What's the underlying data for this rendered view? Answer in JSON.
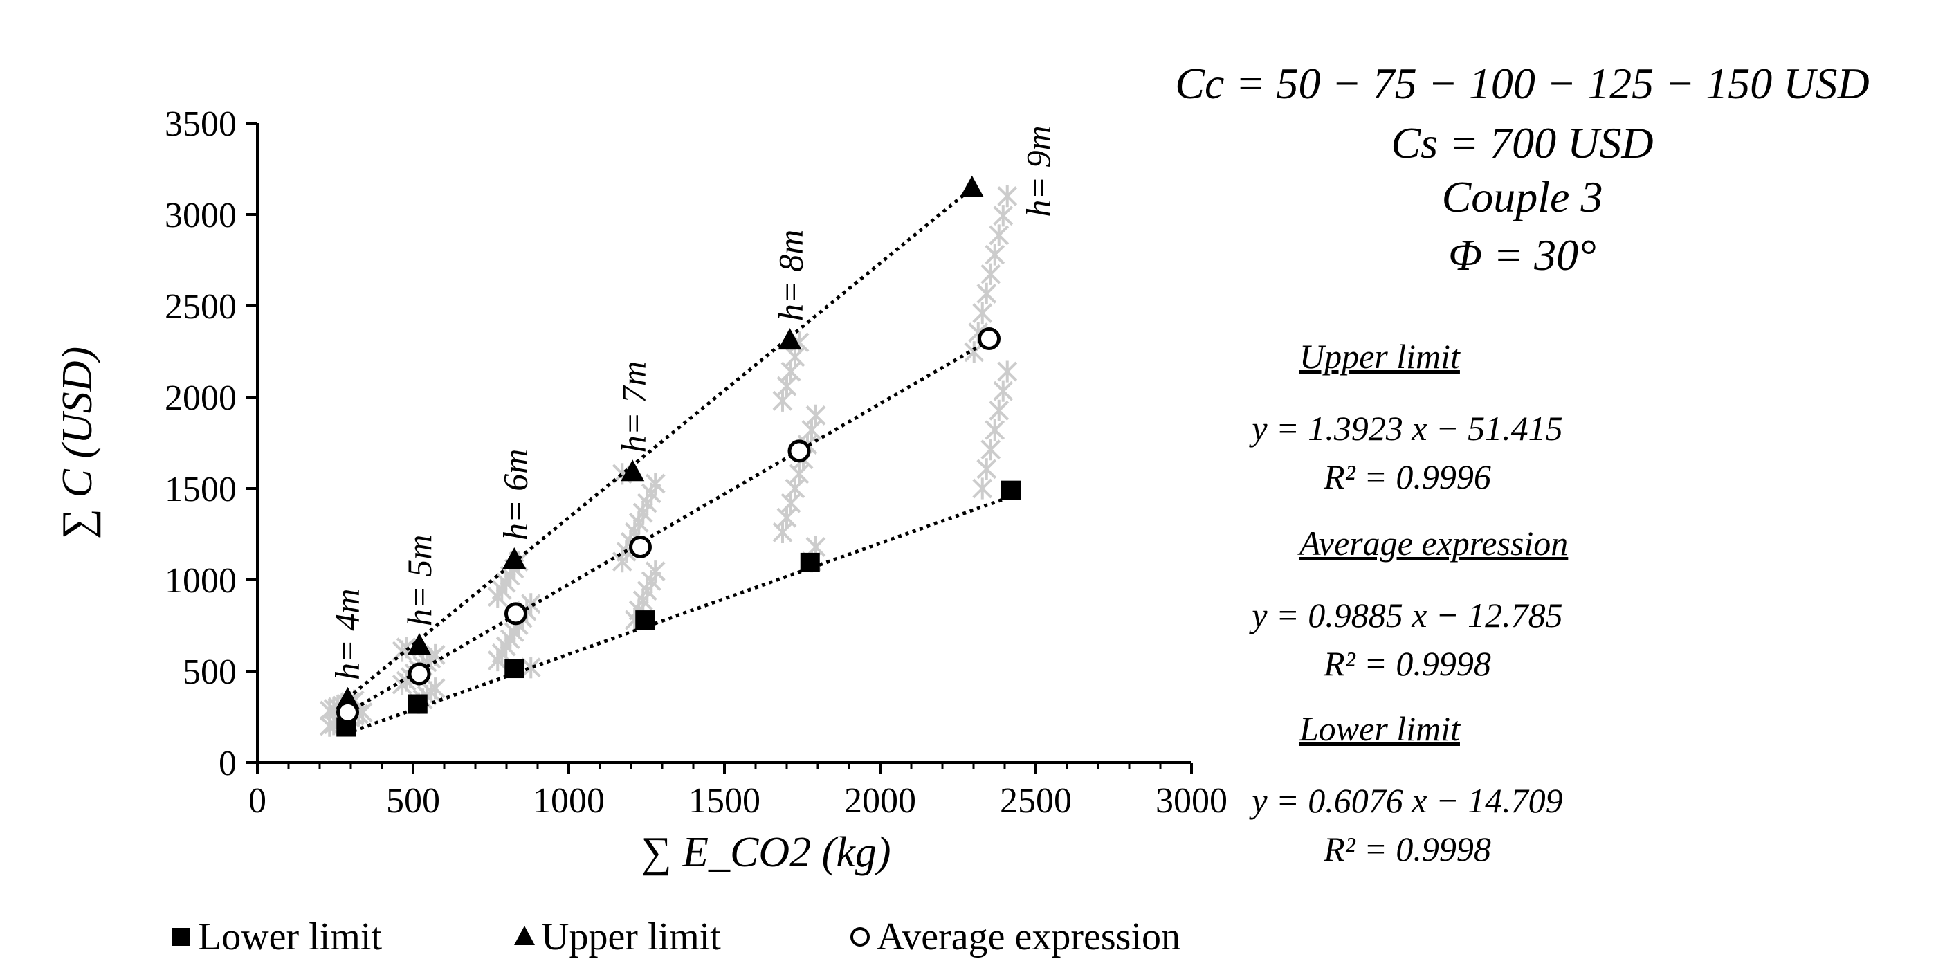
{
  "chart_data": {
    "type": "scatter",
    "title": "",
    "xlabel": "∑ E_CO2 (kg)",
    "ylabel": "∑ C (USD)",
    "xlim": [
      0,
      3000
    ],
    "ylim": [
      0,
      3500
    ],
    "xticks": [
      "0",
      "500",
      "1000",
      "1500",
      "2000",
      "2500",
      "3000"
    ],
    "yticks": [
      "0",
      "500",
      "1000",
      "1500",
      "2000",
      "2500",
      "3000",
      "3500"
    ],
    "grid": false,
    "legend_position": "bottom",
    "series": [
      {
        "name": "Lower limit",
        "marker": "square",
        "points": [
          [
            285,
            195
          ],
          [
            515,
            320
          ],
          [
            825,
            515
          ],
          [
            1245,
            780
          ],
          [
            1775,
            1095
          ],
          [
            2420,
            1490
          ]
        ]
      },
      {
        "name": "Upper limit",
        "marker": "triangle",
        "points": [
          [
            290,
            345
          ],
          [
            520,
            640
          ],
          [
            825,
            1110
          ],
          [
            1205,
            1590
          ],
          [
            1710,
            2310
          ],
          [
            2295,
            3145
          ]
        ]
      },
      {
        "name": "Average expression",
        "marker": "circle",
        "points": [
          [
            290,
            275
          ],
          [
            520,
            485
          ],
          [
            830,
            815
          ],
          [
            1230,
            1180
          ],
          [
            1740,
            1705
          ],
          [
            2350,
            2320
          ]
        ]
      }
    ],
    "trendlines": [
      {
        "name": "Upper limit",
        "slope": 1.3923,
        "intercept": -51.415,
        "x_range": [
          290,
          2295
        ]
      },
      {
        "name": "Average expression",
        "slope": 0.9885,
        "intercept": -12.785,
        "x_range": [
          290,
          2350
        ]
      },
      {
        "name": "Lower limit",
        "slope": 0.6076,
        "intercept": -14.709,
        "x_range": [
          285,
          2420
        ]
      }
    ],
    "scatter_clusters": [
      {
        "x": 285,
        "y_range": [
          200,
          340
        ]
      },
      {
        "x": 518,
        "y_range": [
          325,
          630
        ]
      },
      {
        "x": 825,
        "y_range": [
          520,
          1100
        ]
      },
      {
        "x": 1225,
        "y_range": [
          780,
          1580
        ]
      },
      {
        "x": 1740,
        "y_range": [
          1100,
          2300
        ]
      },
      {
        "x": 2355,
        "y_range": [
          1500,
          3100
        ]
      }
    ],
    "height_labels": [
      {
        "text": "h= 4m",
        "x": 285,
        "y": 345
      },
      {
        "text": "h= 5m",
        "x": 518,
        "y": 640
      },
      {
        "text": "h= 6m",
        "x": 825,
        "y": 1110
      },
      {
        "text": "h= 7m",
        "x": 1205,
        "y": 1590
      },
      {
        "text": "h= 8m",
        "x": 1710,
        "y": 2310
      },
      {
        "text": "h= 9m",
        "x": 2505,
        "y": 2880
      }
    ],
    "parameters": [
      "Cc = 50 − 75 − 100 − 125 − 150 USD",
      "Cs = 700 USD",
      "Couple 3",
      "Φ = 30°"
    ],
    "equations": [
      {
        "heading": "Upper limit",
        "equation": "y = 1.3923 x − 51.415",
        "r2": "R² = 0.9996"
      },
      {
        "heading": "Average expression",
        "equation": "y = 0.9885 x − 12.785",
        "r2": "R² = 0.9998"
      },
      {
        "heading": "Lower limit",
        "equation": "y = 0.6076 x − 14.709",
        "r2": "R² = 0.9998"
      }
    ]
  }
}
